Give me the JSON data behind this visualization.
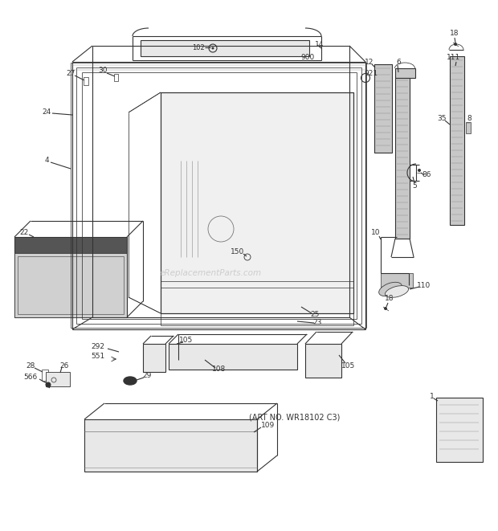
{
  "background_color": "#ffffff",
  "watermark": "eReplacementParts.com",
  "art_no": "(ART NO. WR18102 C3)",
  "fig_width": 6.2,
  "fig_height": 6.61,
  "dpi": 100,
  "line_color": "#333333",
  "gray_fill": "#c8c8c8",
  "light_fill": "#e8e8e8",
  "dark_fill": "#555555"
}
